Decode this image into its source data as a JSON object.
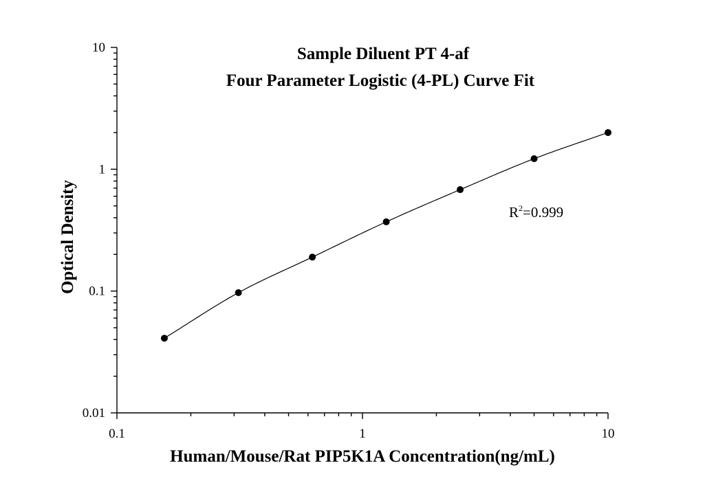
{
  "chart_data": {
    "type": "scatter",
    "title": [
      "Sample Diluent PT 4-af",
      "Four Parameter Logistic (4-PL) Curve Fit"
    ],
    "xlabel": "Human/Mouse/Rat PIP5K1A Concentration(ng/mL)",
    "ylabel": "Optical Density",
    "xscale": "log",
    "yscale": "log",
    "xlim": [
      0.1,
      10
    ],
    "ylim": [
      0.01,
      10
    ],
    "xticks": [
      0.1,
      1,
      10
    ],
    "xtick_labels": [
      "0.1",
      "1",
      "10"
    ],
    "yticks": [
      0.01,
      0.1,
      1,
      10
    ],
    "ytick_labels": [
      "0.01",
      "0.1",
      "1",
      "10"
    ],
    "grid": false,
    "legend": "none",
    "series": [
      {
        "x": [
          0.156,
          0.3125,
          0.625,
          1.25,
          2.5,
          5,
          10
        ],
        "y": [
          0.041,
          0.097,
          0.19,
          0.37,
          0.68,
          1.22,
          2.0
        ],
        "marker": "circle",
        "fit": "4-PL curve"
      }
    ],
    "annotation": {
      "base": "R",
      "sup": "2",
      "tail": "=0.999"
    },
    "colors": {
      "marker": "#000000",
      "line": "#000000"
    }
  }
}
